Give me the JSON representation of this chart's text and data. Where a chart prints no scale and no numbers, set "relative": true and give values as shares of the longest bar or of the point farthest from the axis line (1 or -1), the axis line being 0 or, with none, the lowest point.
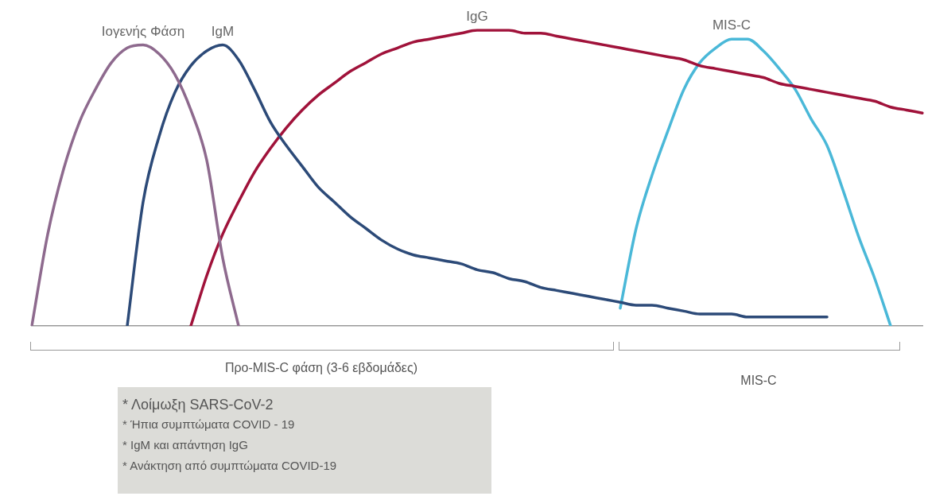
{
  "chart_data": {
    "type": "line",
    "relative": true,
    "legend": false,
    "marker": "none",
    "categories": [
      null,
      null,
      null,
      null,
      null,
      null,
      null,
      null,
      null,
      null,
      null,
      null,
      null,
      null,
      null,
      null,
      null,
      null,
      null,
      null,
      null,
      null,
      null,
      null,
      null,
      null,
      null,
      null,
      null,
      null,
      null,
      null,
      null,
      null,
      null,
      null,
      null,
      null,
      null,
      null,
      null,
      null,
      null,
      null,
      null,
      null,
      null,
      null,
      null,
      null,
      null,
      null,
      null,
      null,
      null,
      null,
      null
    ],
    "series": [
      {
        "name": "Ιογενής Φάση",
        "color": "#8e6a8e",
        "values": [
          0,
          0.31,
          0.53,
          0.69,
          0.8,
          0.89,
          0.94,
          0.95,
          0.92,
          0.85,
          0.73,
          0.56,
          0.23,
          0,
          null,
          null,
          null,
          null,
          null,
          null,
          null,
          null,
          null,
          null,
          null,
          null,
          null,
          null,
          null,
          null,
          null,
          null,
          null,
          null,
          null,
          null,
          null,
          null,
          null,
          null,
          null,
          null,
          null,
          null,
          null,
          null,
          null,
          null,
          null,
          null,
          null,
          null,
          null,
          null,
          null,
          null,
          null
        ]
      },
      {
        "name": "IgM",
        "color": "#2c4a78",
        "values": [
          null,
          null,
          null,
          null,
          null,
          null,
          0,
          0.42,
          0.64,
          0.79,
          0.88,
          0.93,
          0.95,
          0.9,
          0.8,
          0.69,
          0.61,
          0.54,
          0.47,
          0.42,
          0.37,
          0.33,
          0.29,
          0.26,
          0.24,
          0.23,
          0.22,
          0.21,
          0.19,
          0.18,
          0.16,
          0.15,
          0.13,
          0.12,
          0.11,
          0.1,
          0.09,
          0.08,
          0.07,
          0.07,
          0.06,
          0.05,
          0.04,
          0.04,
          0.04,
          0.03,
          0.03,
          0.03,
          0.03,
          0.03,
          0.03,
          null,
          null,
          null,
          null,
          null,
          null
        ]
      },
      {
        "name": "IgG",
        "color": "#a0123a",
        "values": [
          null,
          null,
          null,
          null,
          null,
          null,
          null,
          null,
          null,
          null,
          0,
          0.17,
          0.31,
          0.42,
          0.52,
          0.6,
          0.67,
          0.73,
          0.78,
          0.82,
          0.86,
          0.89,
          0.92,
          0.94,
          0.96,
          0.97,
          0.98,
          0.99,
          1,
          1,
          1,
          0.99,
          0.99,
          0.98,
          0.97,
          0.96,
          0.95,
          0.94,
          0.93,
          0.92,
          0.91,
          0.9,
          0.88,
          0.87,
          0.86,
          0.85,
          0.84,
          0.82,
          0.81,
          0.8,
          0.79,
          0.78,
          0.77,
          0.76,
          0.74,
          0.73,
          0.72
        ]
      },
      {
        "name": "MIS-C",
        "color": "#4ab8d8",
        "values": [
          null,
          null,
          null,
          null,
          null,
          null,
          null,
          null,
          null,
          null,
          null,
          null,
          null,
          null,
          null,
          null,
          null,
          null,
          null,
          null,
          null,
          null,
          null,
          null,
          null,
          null,
          null,
          null,
          null,
          null,
          null,
          null,
          null,
          null,
          null,
          null,
          null,
          0.06,
          0.33,
          0.51,
          0.66,
          0.8,
          0.89,
          0.94,
          0.97,
          0.97,
          0.93,
          0.87,
          0.8,
          0.7,
          0.61,
          0.46,
          0.3,
          0.16,
          0,
          null,
          null
        ]
      }
    ],
    "annotations": [
      "Προ-MIS-C φάση (3-6 εβδομάδες)",
      "MIS-C",
      "* Λοίμωξη SARS-CoV-2",
      "* Ήπια συμπτώματα COVID - 19",
      "* IgM και απάντηση IgG",
      "* Ανάκτηση από συμπτώματα COVID-19"
    ]
  }
}
